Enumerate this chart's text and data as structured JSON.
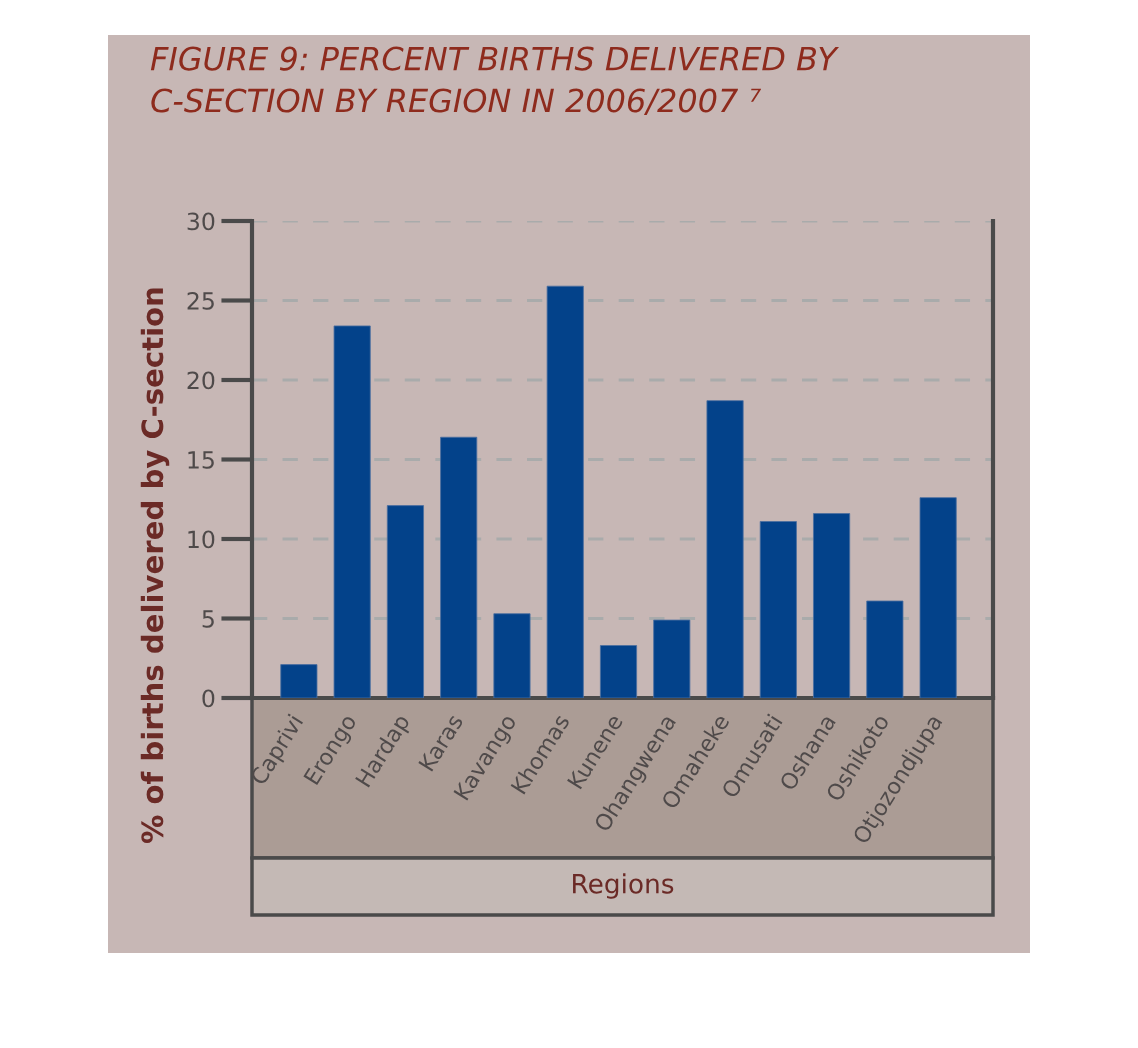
{
  "chart_data": {
    "type": "bar",
    "title": "FIGURE 9: PERCENT BIRTHS DELIVERED BY C-SECTION BY REGION IN 2006/2007 ⁷",
    "xlabel": "Regions",
    "ylabel": "% of births delivered by C-section",
    "categories": [
      "Caprivi",
      "Erongo",
      "Hardap",
      "Karas",
      "Kavango",
      "Khomas",
      "Kunene",
      "Ohangwena",
      "Omaheke",
      "Omusati",
      "Oshana",
      "Oshikoto",
      "Otjozondjupa"
    ],
    "values": [
      2.1,
      23.4,
      12.1,
      16.4,
      5.3,
      25.9,
      3.3,
      4.9,
      18.7,
      11.1,
      11.6,
      6.1,
      12.6
    ],
    "color": "#03428a",
    "ylim": [
      0,
      30
    ],
    "yticks": [
      0,
      5,
      10,
      15,
      20,
      25,
      30
    ],
    "grid": "y"
  }
}
